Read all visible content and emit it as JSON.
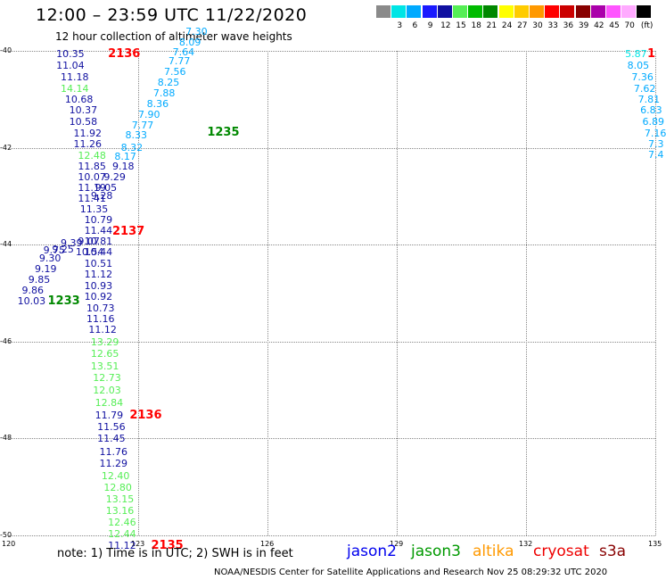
{
  "header": {
    "title": "12:00 – 23:59 UTC 11/22/2020",
    "subtitle": "12 hour collection of altimeter wave heights"
  },
  "color_scale": {
    "unit": "(ft)",
    "bins": [
      {
        "label": "",
        "color": "#8a8a8a"
      },
      {
        "label": "3",
        "color": "#00e5e5"
      },
      {
        "label": "6",
        "color": "#00aaff"
      },
      {
        "label": "9",
        "color": "#1a1aff"
      },
      {
        "label": "12",
        "color": "#1010a0"
      },
      {
        "label": "15",
        "color": "#55ee55"
      },
      {
        "label": "18",
        "color": "#00bb00"
      },
      {
        "label": "21",
        "color": "#008800"
      },
      {
        "label": "24",
        "color": "#ffff00"
      },
      {
        "label": "27",
        "color": "#ffcc00"
      },
      {
        "label": "30",
        "color": "#ff9900"
      },
      {
        "label": "33",
        "color": "#ff0000"
      },
      {
        "label": "36",
        "color": "#cc0000"
      },
      {
        "label": "39",
        "color": "#880000"
      },
      {
        "label": "42",
        "color": "#aa00aa"
      },
      {
        "label": "45",
        "color": "#ff55ff"
      },
      {
        "label": "70",
        "color": "#ffaaff"
      },
      {
        "label": "",
        "color": "#000000"
      }
    ]
  },
  "axes": {
    "lat_labels": [
      "-40",
      "-42",
      "-44",
      "-46",
      "-48",
      "-50"
    ],
    "lon_labels": [
      "120",
      "123",
      "126",
      "129",
      "132",
      "135"
    ]
  },
  "observations": [
    {
      "v": "10.35",
      "c": "#1010a0",
      "lon": 121.1,
      "lat": -40.06
    },
    {
      "v": "11.04",
      "c": "#1010a0",
      "lon": 121.1,
      "lat": -40.3
    },
    {
      "v": "11.18",
      "c": "#1010a0",
      "lon": 121.2,
      "lat": -40.54
    },
    {
      "v": "14.14",
      "c": "#55ee55",
      "lon": 121.2,
      "lat": -40.78
    },
    {
      "v": "10.68",
      "c": "#1010a0",
      "lon": 121.3,
      "lat": -41.0
    },
    {
      "v": "10.37",
      "c": "#1010a0",
      "lon": 121.4,
      "lat": -41.22
    },
    {
      "v": "10.58",
      "c": "#1010a0",
      "lon": 121.4,
      "lat": -41.46
    },
    {
      "v": "11.92",
      "c": "#1010a0",
      "lon": 121.5,
      "lat": -41.7
    },
    {
      "v": "11.26",
      "c": "#1010a0",
      "lon": 121.5,
      "lat": -41.92
    },
    {
      "v": "12.48",
      "c": "#55ee55",
      "lon": 121.6,
      "lat": -42.15
    },
    {
      "v": "11.85",
      "c": "#1010a0",
      "lon": 121.6,
      "lat": -42.37
    },
    {
      "v": "10.07",
      "c": "#1010a0",
      "lon": 121.6,
      "lat": -42.6
    },
    {
      "v": "11.19",
      "c": "#1010a0",
      "lon": 121.6,
      "lat": -42.82
    },
    {
      "v": "11.41",
      "c": "#1010a0",
      "lon": 121.6,
      "lat": -43.04
    },
    {
      "v": "11.35",
      "c": "#1010a0",
      "lon": 121.65,
      "lat": -43.26
    },
    {
      "v": "10.79",
      "c": "#1010a0",
      "lon": 121.75,
      "lat": -43.48
    },
    {
      "v": "11.44",
      "c": "#1010a0",
      "lon": 121.75,
      "lat": -43.7
    },
    {
      "v": "10.81",
      "c": "#1010a0",
      "lon": 121.75,
      "lat": -43.92
    },
    {
      "v": "10.44",
      "c": "#1010a0",
      "lon": 121.75,
      "lat": -44.14
    },
    {
      "v": "10.51",
      "c": "#1010a0",
      "lon": 121.75,
      "lat": -44.38
    },
    {
      "v": "11.12",
      "c": "#1010a0",
      "lon": 121.75,
      "lat": -44.6
    },
    {
      "v": "10.93",
      "c": "#1010a0",
      "lon": 121.75,
      "lat": -44.84
    },
    {
      "v": "10.92",
      "c": "#1010a0",
      "lon": 121.75,
      "lat": -45.06
    },
    {
      "v": "10.73",
      "c": "#1010a0",
      "lon": 121.8,
      "lat": -45.3
    },
    {
      "v": "11.16",
      "c": "#1010a0",
      "lon": 121.8,
      "lat": -45.52
    },
    {
      "v": "11.12",
      "c": "#1010a0",
      "lon": 121.85,
      "lat": -45.74
    },
    {
      "v": "13.29",
      "c": "#55ee55",
      "lon": 121.9,
      "lat": -46.0
    },
    {
      "v": "12.65",
      "c": "#55ee55",
      "lon": 121.9,
      "lat": -46.24
    },
    {
      "v": "13.51",
      "c": "#55ee55",
      "lon": 121.9,
      "lat": -46.5
    },
    {
      "v": "12.73",
      "c": "#55ee55",
      "lon": 121.95,
      "lat": -46.74
    },
    {
      "v": "12.03",
      "c": "#55ee55",
      "lon": 121.95,
      "lat": -47.0
    },
    {
      "v": "12.84",
      "c": "#55ee55",
      "lon": 122.0,
      "lat": -47.26
    },
    {
      "v": "11.79",
      "c": "#1010a0",
      "lon": 122.0,
      "lat": -47.52
    },
    {
      "v": "11.56",
      "c": "#1010a0",
      "lon": 122.05,
      "lat": -47.76
    },
    {
      "v": "11.45",
      "c": "#1010a0",
      "lon": 122.05,
      "lat": -48.0
    },
    {
      "v": "11.76",
      "c": "#1010a0",
      "lon": 122.1,
      "lat": -48.26
    },
    {
      "v": "11.29",
      "c": "#1010a0",
      "lon": 122.1,
      "lat": -48.5
    },
    {
      "v": "12.40",
      "c": "#55ee55",
      "lon": 122.15,
      "lat": -48.76
    },
    {
      "v": "12.80",
      "c": "#55ee55",
      "lon": 122.2,
      "lat": -49.0
    },
    {
      "v": "13.15",
      "c": "#55ee55",
      "lon": 122.25,
      "lat": -49.24
    },
    {
      "v": "13.16",
      "c": "#55ee55",
      "lon": 122.25,
      "lat": -49.48
    },
    {
      "v": "12.46",
      "c": "#55ee55",
      "lon": 122.3,
      "lat": -49.72
    },
    {
      "v": "12.44",
      "c": "#55ee55",
      "lon": 122.3,
      "lat": -49.96
    },
    {
      "v": "11.12",
      "c": "#1010a0",
      "lon": 122.3,
      "lat": -50.2
    },
    {
      "v": "9.07",
      "c": "#1010a0",
      "lon": 121.6,
      "lat": -43.92
    },
    {
      "v": "9.39",
      "c": "#1010a0",
      "lon": 121.2,
      "lat": -43.96
    },
    {
      "v": "9.25",
      "c": "#1010a0",
      "lon": 121.0,
      "lat": -44.08
    },
    {
      "v": "9.75",
      "c": "#1010a0",
      "lon": 120.8,
      "lat": -44.1
    },
    {
      "v": "9.30",
      "c": "#1010a0",
      "lon": 120.7,
      "lat": -44.28
    },
    {
      "v": "9.19",
      "c": "#1010a0",
      "lon": 120.6,
      "lat": -44.5
    },
    {
      "v": "9.85",
      "c": "#1010a0",
      "lon": 120.45,
      "lat": -44.72
    },
    {
      "v": "9.86",
      "c": "#1010a0",
      "lon": 120.3,
      "lat": -44.94
    },
    {
      "v": "10.03",
      "c": "#1010a0",
      "lon": 120.2,
      "lat": -45.16
    },
    {
      "v": "9.29",
      "c": "#1010a0",
      "lon": 122.2,
      "lat": -42.6
    },
    {
      "v": "9.05",
      "c": "#1010a0",
      "lon": 122.0,
      "lat": -42.82
    },
    {
      "v": "9.28",
      "c": "#1010a0",
      "lon": 121.9,
      "lat": -42.98
    },
    {
      "v": "9.18",
      "c": "#1010a0",
      "lon": 122.4,
      "lat": -42.38
    },
    {
      "v": "8.17",
      "c": "#00aaff",
      "lon": 122.45,
      "lat": -42.18
    },
    {
      "v": "8.32",
      "c": "#00aaff",
      "lon": 122.6,
      "lat": -41.98
    },
    {
      "v": "8.33",
      "c": "#00aaff",
      "lon": 122.7,
      "lat": -41.74
    },
    {
      "v": "7.77",
      "c": "#00aaff",
      "lon": 122.85,
      "lat": -41.52
    },
    {
      "v": "7.90",
      "c": "#00aaff",
      "lon": 123.0,
      "lat": -41.3
    },
    {
      "v": "8.36",
      "c": "#00aaff",
      "lon": 123.2,
      "lat": -41.08
    },
    {
      "v": "7.88",
      "c": "#00aaff",
      "lon": 123.35,
      "lat": -40.86
    },
    {
      "v": "8.25",
      "c": "#00aaff",
      "lon": 123.45,
      "lat": -40.64
    },
    {
      "v": "7.56",
      "c": "#00aaff",
      "lon": 123.6,
      "lat": -40.42
    },
    {
      "v": "7.77",
      "c": "#00aaff",
      "lon": 123.7,
      "lat": -40.2
    },
    {
      "v": "7.64",
      "c": "#00aaff",
      "lon": 123.8,
      "lat": -40.02
    },
    {
      "v": "8.09",
      "c": "#00aaff",
      "lon": 123.95,
      "lat": -39.82
    },
    {
      "v": "7.30",
      "c": "#00aaff",
      "lon": 124.1,
      "lat": -39.6
    },
    {
      "v": "10.54",
      "c": "#1010a0",
      "lon": 121.55,
      "lat": -44.14
    },
    {
      "v": "5.87",
      "c": "#00e5e5",
      "lon": 134.3,
      "lat": -40.06
    },
    {
      "v": "8.05",
      "c": "#00aaff",
      "lon": 134.35,
      "lat": -40.3
    },
    {
      "v": "7.36",
      "c": "#00aaff",
      "lon": 134.45,
      "lat": -40.54
    },
    {
      "v": "7.62",
      "c": "#00aaff",
      "lon": 134.5,
      "lat": -40.78
    },
    {
      "v": "7.81",
      "c": "#00aaff",
      "lon": 134.6,
      "lat": -41.0
    },
    {
      "v": "6.83",
      "c": "#00aaff",
      "lon": 134.65,
      "lat": -41.22
    },
    {
      "v": "6.89",
      "c": "#00aaff",
      "lon": 134.7,
      "lat": -41.46
    },
    {
      "v": "7.16",
      "c": "#00aaff",
      "lon": 134.75,
      "lat": -41.7
    },
    {
      "v": "7.3",
      "c": "#00aaff",
      "lon": 134.85,
      "lat": -41.92
    },
    {
      "v": "7.4",
      "c": "#00aaff",
      "lon": 134.9,
      "lat": -42.14
    }
  ],
  "pass_times": [
    {
      "t": "2136",
      "c": "#ff0000",
      "lon": 122.3,
      "lat": -40.06
    },
    {
      "t": "1235",
      "c": "#008800",
      "lon": 124.6,
      "lat": -41.68
    },
    {
      "t": "2137",
      "c": "#ff0000",
      "lon": 122.4,
      "lat": -43.72
    },
    {
      "t": "1233",
      "c": "#008800",
      "lon": 120.9,
      "lat": -45.16
    },
    {
      "t": "2136",
      "c": "#ff0000",
      "lon": 122.8,
      "lat": -47.52
    },
    {
      "t": "2135",
      "c": "#ff0000",
      "lon": 123.3,
      "lat": -50.2
    },
    {
      "t": "1",
      "c": "#ff0000",
      "lon": 135.0,
      "lat": -40.06
    }
  ],
  "note": "note:  1) Time is in UTC;  2) SWH is in feet",
  "legend": [
    {
      "name": "jason2",
      "color": "#0000ee"
    },
    {
      "name": "jason3",
      "color": "#009900"
    },
    {
      "name": "altika",
      "color": "#ff9900"
    },
    {
      "name": "cryosat",
      "color": "#ee0000"
    },
    {
      "name": "s3a",
      "color": "#880000"
    }
  ],
  "footer": "NOAA/NESDIS Center for Satellite Applications and Research    Nov 25 08:29:32 UTC 2020"
}
